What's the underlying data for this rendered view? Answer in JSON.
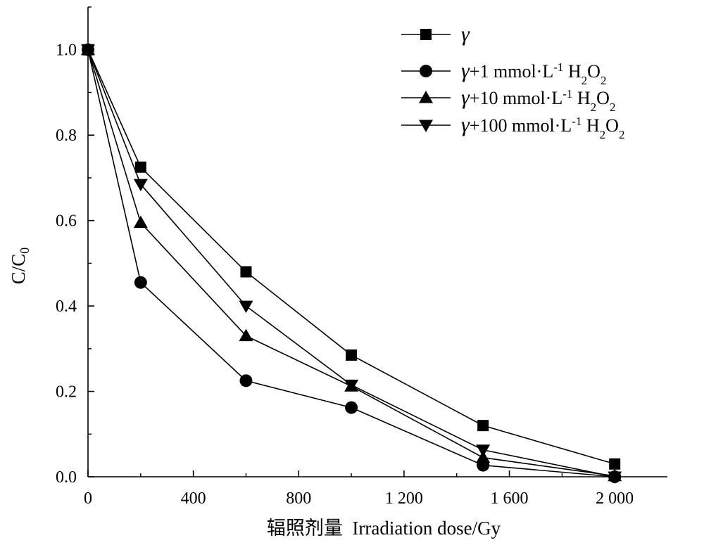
{
  "chart_data": {
    "type": "line",
    "title": "",
    "xlabel": "辐照剂量  Irradiation dose/Gy",
    "ylabel": "C/C",
    "ylabel_sub": "0",
    "xlim": [
      0,
      2200
    ],
    "ylim": [
      0,
      1.1
    ],
    "grid": false,
    "legend_position": "top-right",
    "x_ticks": [
      {
        "value": 0,
        "label": "0"
      },
      {
        "value": 400,
        "label": "400"
      },
      {
        "value": 800,
        "label": "800"
      },
      {
        "value": 1200,
        "label": "1 200"
      },
      {
        "value": 1600,
        "label": "1 600"
      },
      {
        "value": 2000,
        "label": "2 000"
      }
    ],
    "y_ticks": [
      {
        "value": 0.0,
        "label": "0.0"
      },
      {
        "value": 0.2,
        "label": "0.2"
      },
      {
        "value": 0.4,
        "label": "0.4"
      },
      {
        "value": 0.6,
        "label": "0.6"
      },
      {
        "value": 0.8,
        "label": "0.8"
      },
      {
        "value": 1.0,
        "label": "1.0"
      }
    ],
    "x": [
      0,
      200,
      600,
      1000,
      1500,
      2000
    ],
    "series": [
      {
        "name": "γ",
        "marker": "square",
        "values": [
          1.0,
          0.725,
          0.48,
          0.285,
          0.12,
          0.03
        ],
        "legend": {
          "gamma": "γ",
          "plus": "",
          "sup": "",
          "mid": "",
          "sub": "",
          "end": ""
        }
      },
      {
        "name": "γ+1 mmol·L-1 H2O2",
        "marker": "circle",
        "values": [
          1.0,
          0.455,
          0.225,
          0.162,
          0.027,
          0.0
        ],
        "legend": {
          "gamma": "γ",
          "plus": "+1 mmol·L",
          "sup": "-1",
          "mid": " H",
          "sub": "2",
          "end": "O",
          "sub2": "2"
        }
      },
      {
        "name": "γ+10 mmol·L-1 H2O2",
        "marker": "triangle-up",
        "values": [
          1.0,
          0.595,
          0.33,
          0.212,
          0.045,
          0.002
        ],
        "legend": {
          "gamma": "γ",
          "plus": "+10 mmol·L",
          "sup": "-1",
          "mid": " H",
          "sub": "2",
          "end": "O",
          "sub2": "2"
        }
      },
      {
        "name": "γ+100 mmol·L-1 H2O2",
        "marker": "triangle-down",
        "values": [
          1.0,
          0.685,
          0.4,
          0.215,
          0.063,
          0.0
        ],
        "legend": {
          "gamma": "γ",
          "plus": "+100 mmol·L",
          "sup": "-1",
          "mid": " H",
          "sub": "2",
          "end": "O",
          "sub2": "2"
        }
      }
    ]
  }
}
